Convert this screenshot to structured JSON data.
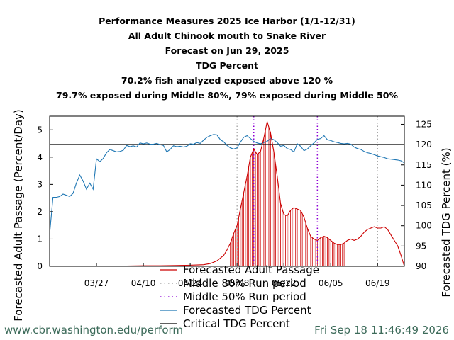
{
  "chart_data": {
    "type": "line",
    "title_lines": [
      "Performance Measures 2025 Ice Harbor (1/1-12/31)",
      "All Adult Chinook mouth to Snake River",
      "Forecast on Jun 29, 2025",
      "TDG Percent",
      "70.2% fish analyzed exposed above 120 %",
      "79.7% exposed during Middle 80%, 79% exposed during Middle 50%"
    ],
    "ylabel": "Forecasted Adult Passage (Percent/Day)",
    "y2label": "Forecasted TDG Percent (%)",
    "x_ticks": [
      "03/27",
      "04/10",
      "04/24",
      "05/08",
      "05/22",
      "06/05",
      "06/19"
    ],
    "x_tick_days": [
      86,
      100,
      114,
      128,
      142,
      156,
      170
    ],
    "xlim": [
      72,
      178
    ],
    "ylim": [
      0,
      5.5
    ],
    "y_ticks": [
      0,
      1,
      2,
      3,
      4,
      5
    ],
    "y2lim": [
      90,
      127
    ],
    "y2_ticks": [
      90,
      95,
      100,
      105,
      110,
      115,
      120,
      125
    ],
    "critical_tdg": 120,
    "middle80_days": [
      128,
      170
    ],
    "middle50_days": [
      133,
      152
    ],
    "series": [
      {
        "name": "Forecasted Adult Passage",
        "color": "#cc0000",
        "axis": "left",
        "points": [
          [
            72,
            0
          ],
          [
            90,
            0
          ],
          [
            95,
            0.01
          ],
          [
            100,
            0.02
          ],
          [
            105,
            0.02
          ],
          [
            110,
            0.03
          ],
          [
            113,
            0.04
          ],
          [
            116,
            0.05
          ],
          [
            118,
            0.06
          ],
          [
            120,
            0.1
          ],
          [
            122,
            0.2
          ],
          [
            124,
            0.4
          ],
          [
            125,
            0.6
          ],
          [
            126,
            0.85
          ],
          [
            127,
            1.2
          ],
          [
            128,
            1.5
          ],
          [
            129,
            2.1
          ],
          [
            130,
            2.7
          ],
          [
            131,
            3.3
          ],
          [
            132,
            4.0
          ],
          [
            133,
            4.3
          ],
          [
            134,
            4.1
          ],
          [
            135,
            4.2
          ],
          [
            136,
            4.7
          ],
          [
            137,
            5.3
          ],
          [
            138,
            4.9
          ],
          [
            139,
            4.2
          ],
          [
            140,
            3.3
          ],
          [
            141,
            2.3
          ],
          [
            142,
            1.9
          ],
          [
            143,
            1.85
          ],
          [
            144,
            2.05
          ],
          [
            145,
            2.15
          ],
          [
            146,
            2.1
          ],
          [
            147,
            2.05
          ],
          [
            148,
            1.8
          ],
          [
            149,
            1.4
          ],
          [
            150,
            1.1
          ],
          [
            151,
            1.0
          ],
          [
            152,
            0.95
          ],
          [
            153,
            1.05
          ],
          [
            154,
            1.1
          ],
          [
            155,
            1.05
          ],
          [
            156,
            0.95
          ],
          [
            157,
            0.85
          ],
          [
            158,
            0.8
          ],
          [
            159,
            0.8
          ],
          [
            160,
            0.85
          ],
          [
            161,
            0.95
          ],
          [
            162,
            1.0
          ],
          [
            163,
            0.95
          ],
          [
            164,
            1.0
          ],
          [
            165,
            1.1
          ],
          [
            166,
            1.25
          ],
          [
            167,
            1.35
          ],
          [
            168,
            1.4
          ],
          [
            169,
            1.45
          ],
          [
            170,
            1.4
          ],
          [
            171,
            1.4
          ],
          [
            172,
            1.45
          ],
          [
            173,
            1.35
          ],
          [
            174,
            1.15
          ],
          [
            175,
            0.95
          ],
          [
            176,
            0.75
          ],
          [
            177,
            0.4
          ],
          [
            178,
            0.0
          ]
        ]
      },
      {
        "name": "Forecasted TDG Percent",
        "color": "#1f77b4",
        "axis": "right",
        "points": [
          [
            72,
            98
          ],
          [
            73,
            107
          ],
          [
            74,
            107
          ],
          [
            75,
            107.2
          ],
          [
            76,
            107.8
          ],
          [
            77,
            107.5
          ],
          [
            78,
            107.2
          ],
          [
            79,
            108
          ],
          [
            80,
            110.5
          ],
          [
            81,
            112.5
          ],
          [
            82,
            111
          ],
          [
            83,
            109
          ],
          [
            84,
            110.5
          ],
          [
            85,
            109
          ],
          [
            86,
            116.5
          ],
          [
            87,
            115.8
          ],
          [
            88,
            116.6
          ],
          [
            89,
            118
          ],
          [
            90,
            118.8
          ],
          [
            91,
            118.5
          ],
          [
            92,
            118.2
          ],
          [
            93,
            118.3
          ],
          [
            94,
            118.6
          ],
          [
            95,
            119.8
          ],
          [
            96,
            119.5
          ],
          [
            97,
            119.7
          ],
          [
            98,
            119.4
          ],
          [
            99,
            120.4
          ],
          [
            100,
            120.2
          ],
          [
            101,
            120.4
          ],
          [
            102,
            120.1
          ],
          [
            103,
            120.1
          ],
          [
            104,
            120.3
          ],
          [
            105,
            120
          ],
          [
            106,
            119.8
          ],
          [
            107,
            118.2
          ],
          [
            108,
            118.8
          ],
          [
            109,
            119.7
          ],
          [
            110,
            119.5
          ],
          [
            111,
            119.6
          ],
          [
            112,
            119.4
          ],
          [
            113,
            119.6
          ],
          [
            114,
            120.2
          ],
          [
            115,
            120.1
          ],
          [
            116,
            120.5
          ],
          [
            117,
            120.3
          ],
          [
            118,
            121.1
          ],
          [
            119,
            121.8
          ],
          [
            120,
            122.2
          ],
          [
            121,
            122.5
          ],
          [
            122,
            122.4
          ],
          [
            123,
            121.2
          ],
          [
            124,
            120.7
          ],
          [
            125,
            119.8
          ],
          [
            126,
            119.2
          ],
          [
            127,
            118.9
          ],
          [
            128,
            119.2
          ],
          [
            129,
            120.6
          ],
          [
            130,
            121.8
          ],
          [
            131,
            122.2
          ],
          [
            132,
            121.5
          ],
          [
            133,
            120.8
          ],
          [
            134,
            120.4
          ],
          [
            135,
            120.2
          ],
          [
            136,
            120.5
          ],
          [
            137,
            120.8
          ],
          [
            138,
            121.5
          ],
          [
            139,
            121.2
          ],
          [
            140,
            120.5
          ],
          [
            141,
            119.6
          ],
          [
            142,
            119.8
          ],
          [
            143,
            119
          ],
          [
            144,
            118.8
          ],
          [
            145,
            118.2
          ],
          [
            146,
            120.2
          ],
          [
            147,
            119.6
          ],
          [
            148,
            118.5
          ],
          [
            149,
            118.9
          ],
          [
            150,
            119.7
          ],
          [
            151,
            120.4
          ],
          [
            152,
            121.3
          ],
          [
            153,
            121.5
          ],
          [
            154,
            122.2
          ],
          [
            155,
            121.2
          ],
          [
            156,
            121
          ],
          [
            157,
            120.7
          ],
          [
            158,
            120.5
          ],
          [
            159,
            120.3
          ],
          [
            160,
            120.2
          ],
          [
            161,
            120.3
          ],
          [
            162,
            120.1
          ],
          [
            163,
            119.4
          ],
          [
            164,
            119
          ],
          [
            165,
            118.8
          ],
          [
            166,
            118.3
          ],
          [
            167,
            118
          ],
          [
            168,
            117.8
          ],
          [
            169,
            117.5
          ],
          [
            170,
            117.2
          ],
          [
            171,
            117
          ],
          [
            172,
            116.8
          ],
          [
            173,
            116.5
          ],
          [
            174,
            116.4
          ],
          [
            175,
            116.3
          ],
          [
            176,
            116.2
          ],
          [
            177,
            116
          ],
          [
            178,
            115.5
          ]
        ]
      }
    ],
    "legend": [
      {
        "label": "Forecasted Adult Passage",
        "style": "red-line"
      },
      {
        "label": "Middle 80% Run period",
        "style": "gray-dotted"
      },
      {
        "label": "Middle 50% Run period",
        "style": "purple-dotted"
      },
      {
        "label": "Forecasted TDG Percent",
        "style": "blue-line"
      },
      {
        "label": "Critical TDG Percent",
        "style": "black-line"
      }
    ],
    "legend_placement": "bottom-center",
    "grid": false
  },
  "footer": {
    "source": "www.cbr.washington.edu/perform",
    "timestamp": "Fri Sep 18 11:46:49 2026"
  },
  "colors": {
    "passage": "#cc0000",
    "tdg": "#1f77b4",
    "middle80": "#9a9a9a",
    "middle50": "#8e00d6",
    "critical": "#000000",
    "footer": "#3d6b5a"
  }
}
